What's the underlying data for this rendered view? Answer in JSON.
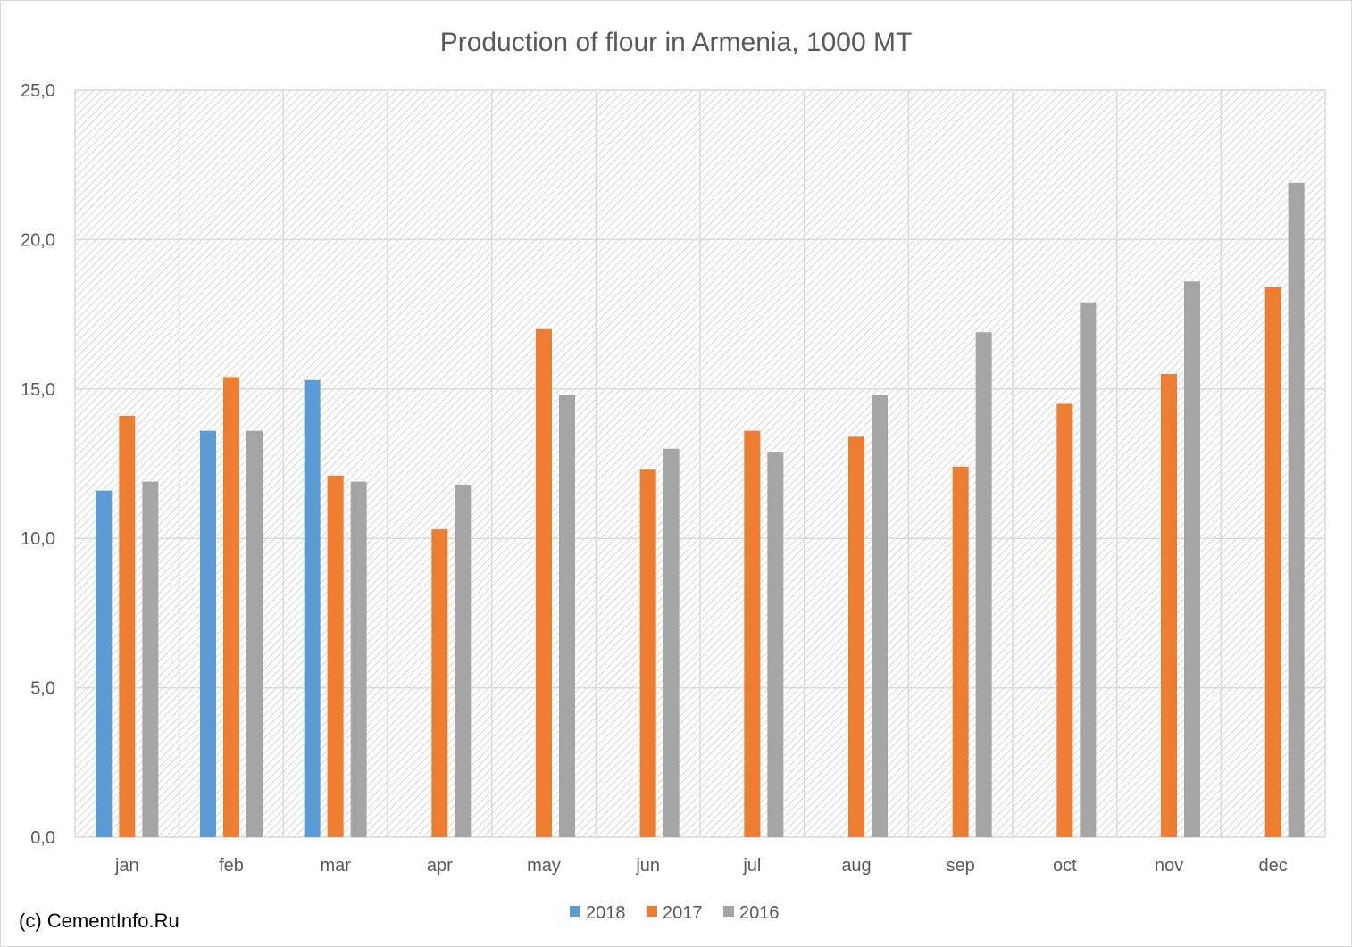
{
  "chart_data": {
    "type": "bar",
    "title": "Production of flour in Armenia, 1000 MT",
    "xlabel": "",
    "ylabel": "",
    "categories": [
      "jan",
      "feb",
      "mar",
      "apr",
      "may",
      "jun",
      "jul",
      "aug",
      "sep",
      "oct",
      "nov",
      "dec"
    ],
    "series": [
      {
        "name": "2018",
        "color": "#5b9bd5",
        "values": [
          11.6,
          13.6,
          15.3,
          null,
          null,
          null,
          null,
          null,
          null,
          null,
          null,
          null
        ]
      },
      {
        "name": "2017",
        "color": "#ed7d31",
        "values": [
          14.1,
          15.4,
          12.1,
          10.3,
          17.0,
          12.3,
          13.6,
          13.4,
          12.4,
          14.5,
          15.5,
          18.4
        ]
      },
      {
        "name": "2016",
        "color": "#a5a5a5",
        "values": [
          11.9,
          13.6,
          11.9,
          11.8,
          14.8,
          13.0,
          12.9,
          14.8,
          16.9,
          17.9,
          18.6,
          21.9
        ]
      }
    ],
    "ylim": [
      0,
      25
    ],
    "yticks": [
      "0,0",
      "5,0",
      "10,0",
      "15,0",
      "20,0",
      "25,0"
    ],
    "ytick_values": [
      0,
      5,
      10,
      15,
      20,
      25
    ],
    "grid": true,
    "legend_position": "bottom"
  },
  "footer": {
    "copyright": "(c) CementInfo.Ru"
  }
}
